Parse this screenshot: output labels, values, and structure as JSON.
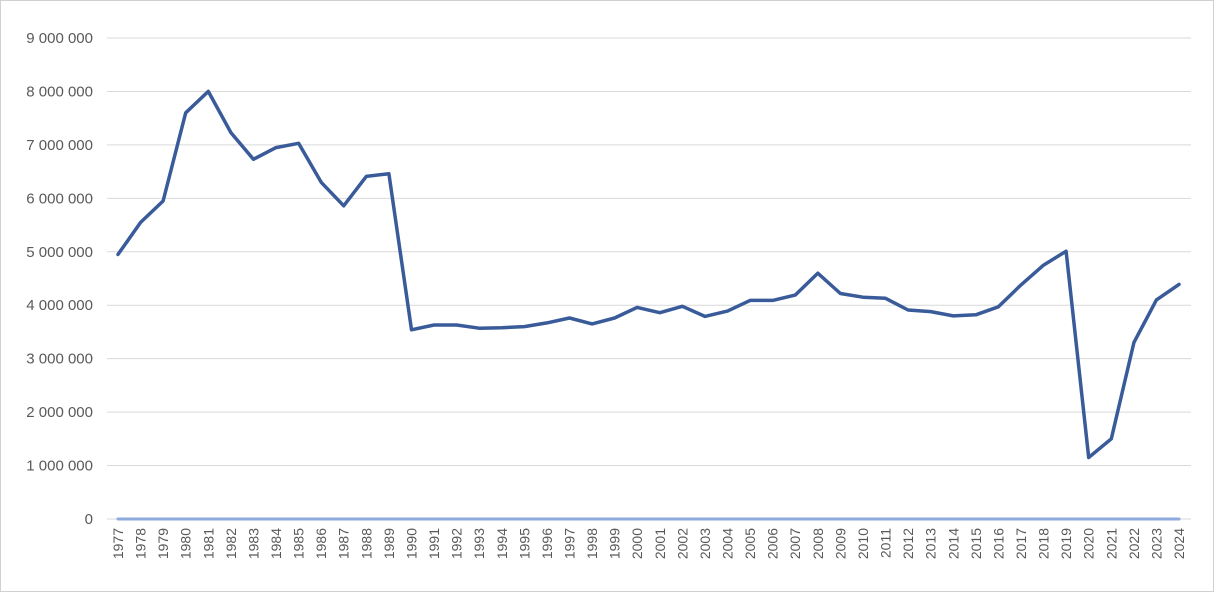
{
  "chart_data": {
    "type": "line",
    "title": "",
    "xlabel": "",
    "ylabel": "",
    "ylim": [
      0,
      9000000
    ],
    "y_ticks": [
      "0",
      "1 000 000",
      "2 000 000",
      "3 000 000",
      "4 000 000",
      "5 000 000",
      "6 000 000",
      "7 000 000",
      "8 000 000",
      "9 000 000"
    ],
    "grid": true,
    "legend": "none",
    "x": [
      "1977",
      "1978",
      "1979",
      "1980",
      "1981",
      "1982",
      "1983",
      "1984",
      "1985",
      "1986",
      "1987",
      "1988",
      "1989",
      "1990",
      "1991",
      "1992",
      "1993",
      "1994",
      "1995",
      "1996",
      "1997",
      "1998",
      "1999",
      "2000",
      "2001",
      "2002",
      "2003",
      "2004",
      "2005",
      "2006",
      "2007",
      "2008",
      "2009",
      "2010",
      "2011",
      "2012",
      "2013",
      "2014",
      "2015",
      "2016",
      "2017",
      "2018",
      "2019",
      "2020",
      "2021",
      "2022",
      "2023",
      "2024"
    ],
    "series": [
      {
        "color": "#3a5b9a",
        "values": [
          4950000,
          5550000,
          5950000,
          7600000,
          8000000,
          7230000,
          6730000,
          6950000,
          7030000,
          6300000,
          5860000,
          6410000,
          6460000,
          3540000,
          3630000,
          3630000,
          3570000,
          3580000,
          3600000,
          3670000,
          3760000,
          3650000,
          3760000,
          3960000,
          3860000,
          3980000,
          3790000,
          3890000,
          4090000,
          4090000,
          4190000,
          4600000,
          4220000,
          4150000,
          4130000,
          3910000,
          3880000,
          3800000,
          3820000,
          3970000,
          4380000,
          4750000,
          5010000,
          1150000,
          1500000,
          3300000,
          4100000,
          4390000
        ]
      },
      {
        "color": "#8faadc",
        "values": [
          0,
          0,
          0,
          0,
          0,
          0,
          0,
          0,
          0,
          0,
          0,
          0,
          0,
          0,
          0,
          0,
          0,
          0,
          0,
          0,
          0,
          0,
          0,
          0,
          0,
          0,
          0,
          0,
          0,
          0,
          0,
          0,
          0,
          0,
          0,
          0,
          0,
          0,
          0,
          0,
          0,
          0,
          0,
          0,
          0,
          0,
          0,
          0
        ]
      }
    ]
  }
}
